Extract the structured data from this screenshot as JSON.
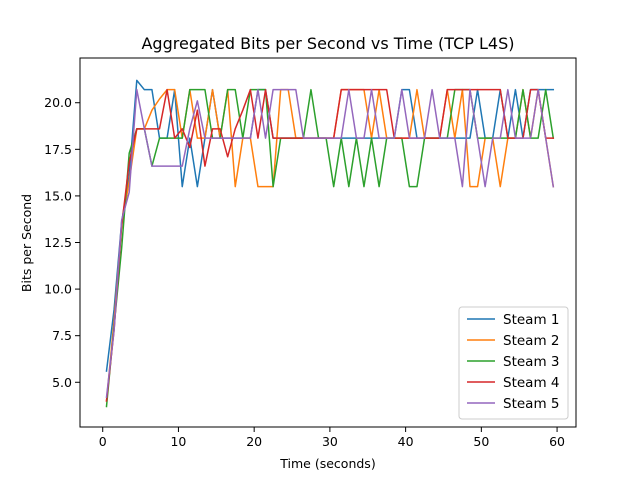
{
  "chart_data": {
    "type": "line",
    "title": "Aggregated Bits per Second vs Time (TCP L4S)",
    "xlabel": "Time (seconds)",
    "ylabel": "Bits per Second",
    "xlim": [
      -3.0,
      62.5
    ],
    "ylim": [
      2.6,
      22.4
    ],
    "xticks": [
      0,
      10,
      20,
      30,
      40,
      50,
      60
    ],
    "xtick_labels": [
      "0",
      "10",
      "20",
      "30",
      "40",
      "50",
      "60"
    ],
    "yticks": [
      5.0,
      7.5,
      10.0,
      12.5,
      15.0,
      17.5,
      20.0
    ],
    "ytick_labels": [
      "5.0",
      "7.5",
      "10.0",
      "12.5",
      "15.0",
      "17.5",
      "20.0"
    ],
    "grid": false,
    "legend_position": "lower-right",
    "x": [
      0.5,
      1.5,
      2.5,
      3.5,
      4.5,
      5.5,
      6.5,
      7.5,
      8.5,
      9.5,
      10.5,
      11.5,
      12.5,
      13.5,
      14.5,
      15.5,
      16.5,
      17.5,
      18.5,
      19.5,
      20.5,
      21.5,
      22.5,
      23.5,
      24.5,
      25.5,
      26.5,
      27.5,
      28.5,
      29.5,
      30.5,
      31.5,
      32.5,
      33.5,
      34.5,
      35.5,
      36.5,
      37.5,
      38.5,
      39.5,
      40.5,
      41.5,
      42.5,
      43.5,
      44.5,
      45.5,
      46.5,
      47.5,
      48.5,
      49.5,
      50.5,
      51.5,
      52.5,
      53.5,
      54.5,
      55.5,
      56.5,
      57.5,
      58.5,
      59.5
    ],
    "series": [
      {
        "name": "Steam 1",
        "color": "#1f77b4",
        "values": [
          5.6,
          8.9,
          13.6,
          16.1,
          21.2,
          20.7,
          20.7,
          18.1,
          18.1,
          20.7,
          15.5,
          18.1,
          15.5,
          18.1,
          20.7,
          18.1,
          18.1,
          18.1,
          18.1,
          18.1,
          20.7,
          20.7,
          18.1,
          18.1,
          18.1,
          18.1,
          18.1,
          18.1,
          18.1,
          18.1,
          18.1,
          18.1,
          18.1,
          18.1,
          18.1,
          18.1,
          18.1,
          18.1,
          18.1,
          20.7,
          20.7,
          18.1,
          18.1,
          18.1,
          18.1,
          18.1,
          18.1,
          18.1,
          18.1,
          20.7,
          18.1,
          18.1,
          20.7,
          18.1,
          20.7,
          18.1,
          20.7,
          20.7,
          20.7,
          20.7
        ]
      },
      {
        "name": "Steam 2",
        "color": "#ff7f0e",
        "values": [
          4.0,
          8.3,
          13.4,
          15.8,
          18.6,
          18.6,
          19.6,
          20.2,
          20.7,
          20.7,
          18.1,
          20.7,
          18.1,
          18.1,
          20.7,
          18.1,
          20.7,
          15.5,
          18.1,
          18.1,
          15.5,
          15.5,
          15.5,
          20.7,
          20.7,
          18.1,
          18.1,
          18.1,
          18.1,
          18.1,
          18.1,
          20.7,
          20.7,
          20.7,
          20.7,
          18.1,
          20.7,
          18.1,
          18.1,
          18.1,
          18.1,
          20.7,
          18.1,
          18.1,
          18.1,
          20.7,
          18.1,
          20.7,
          15.5,
          15.5,
          18.1,
          18.1,
          15.5,
          18.1,
          18.1,
          20.7,
          18.1,
          20.7,
          18.1,
          15.5
        ]
      },
      {
        "name": "Steam 3",
        "color": "#2ca02c",
        "values": [
          3.7,
          8.0,
          12.2,
          17.3,
          18.6,
          18.6,
          16.6,
          18.1,
          18.1,
          18.1,
          18.1,
          20.7,
          20.7,
          20.7,
          18.1,
          18.1,
          20.7,
          20.7,
          18.1,
          20.7,
          20.7,
          20.7,
          15.5,
          18.1,
          18.1,
          18.1,
          18.1,
          20.7,
          18.1,
          18.1,
          15.5,
          18.1,
          15.5,
          18.1,
          15.5,
          18.1,
          15.5,
          18.1,
          18.1,
          18.1,
          15.5,
          15.5,
          18.1,
          18.1,
          18.1,
          18.1,
          20.7,
          20.7,
          20.7,
          18.1,
          18.1,
          18.1,
          18.1,
          18.1,
          18.1,
          20.7,
          18.1,
          18.1,
          20.7,
          18.1
        ]
      },
      {
        "name": "Steam 4",
        "color": "#d62728",
        "values": [
          4.0,
          7.8,
          13.4,
          16.8,
          18.6,
          18.6,
          18.6,
          18.6,
          20.7,
          18.1,
          18.6,
          17.6,
          19.6,
          16.6,
          18.6,
          18.6,
          17.1,
          18.6,
          19.6,
          20.7,
          18.1,
          20.7,
          18.1,
          18.1,
          18.1,
          18.1,
          18.1,
          18.1,
          18.1,
          18.1,
          18.1,
          20.7,
          20.7,
          20.7,
          20.7,
          20.7,
          20.7,
          20.7,
          18.1,
          18.1,
          18.1,
          18.1,
          18.1,
          18.1,
          18.1,
          20.7,
          20.7,
          20.7,
          20.7,
          20.7,
          20.7,
          20.7,
          20.7,
          18.1,
          18.1,
          18.1,
          20.7,
          20.7,
          18.1,
          18.1
        ]
      },
      {
        "name": "Steam 5",
        "color": "#9467bd",
        "values": [
          4.2,
          7.8,
          13.7,
          15.2,
          20.7,
          18.6,
          16.6,
          16.6,
          16.6,
          16.6,
          16.6,
          18.6,
          20.1,
          18.1,
          18.1,
          18.1,
          18.1,
          18.1,
          18.1,
          18.1,
          20.7,
          18.1,
          20.7,
          20.7,
          20.7,
          20.7,
          18.1,
          18.1,
          18.1,
          18.1,
          18.1,
          18.1,
          20.7,
          18.1,
          18.1,
          20.7,
          18.1,
          18.1,
          18.1,
          20.7,
          18.1,
          18.1,
          18.1,
          20.7,
          18.1,
          18.1,
          18.1,
          15.5,
          20.7,
          18.1,
          15.5,
          18.1,
          18.1,
          20.7,
          18.1,
          18.1,
          18.1,
          20.7,
          18.1,
          15.5
        ]
      }
    ]
  }
}
